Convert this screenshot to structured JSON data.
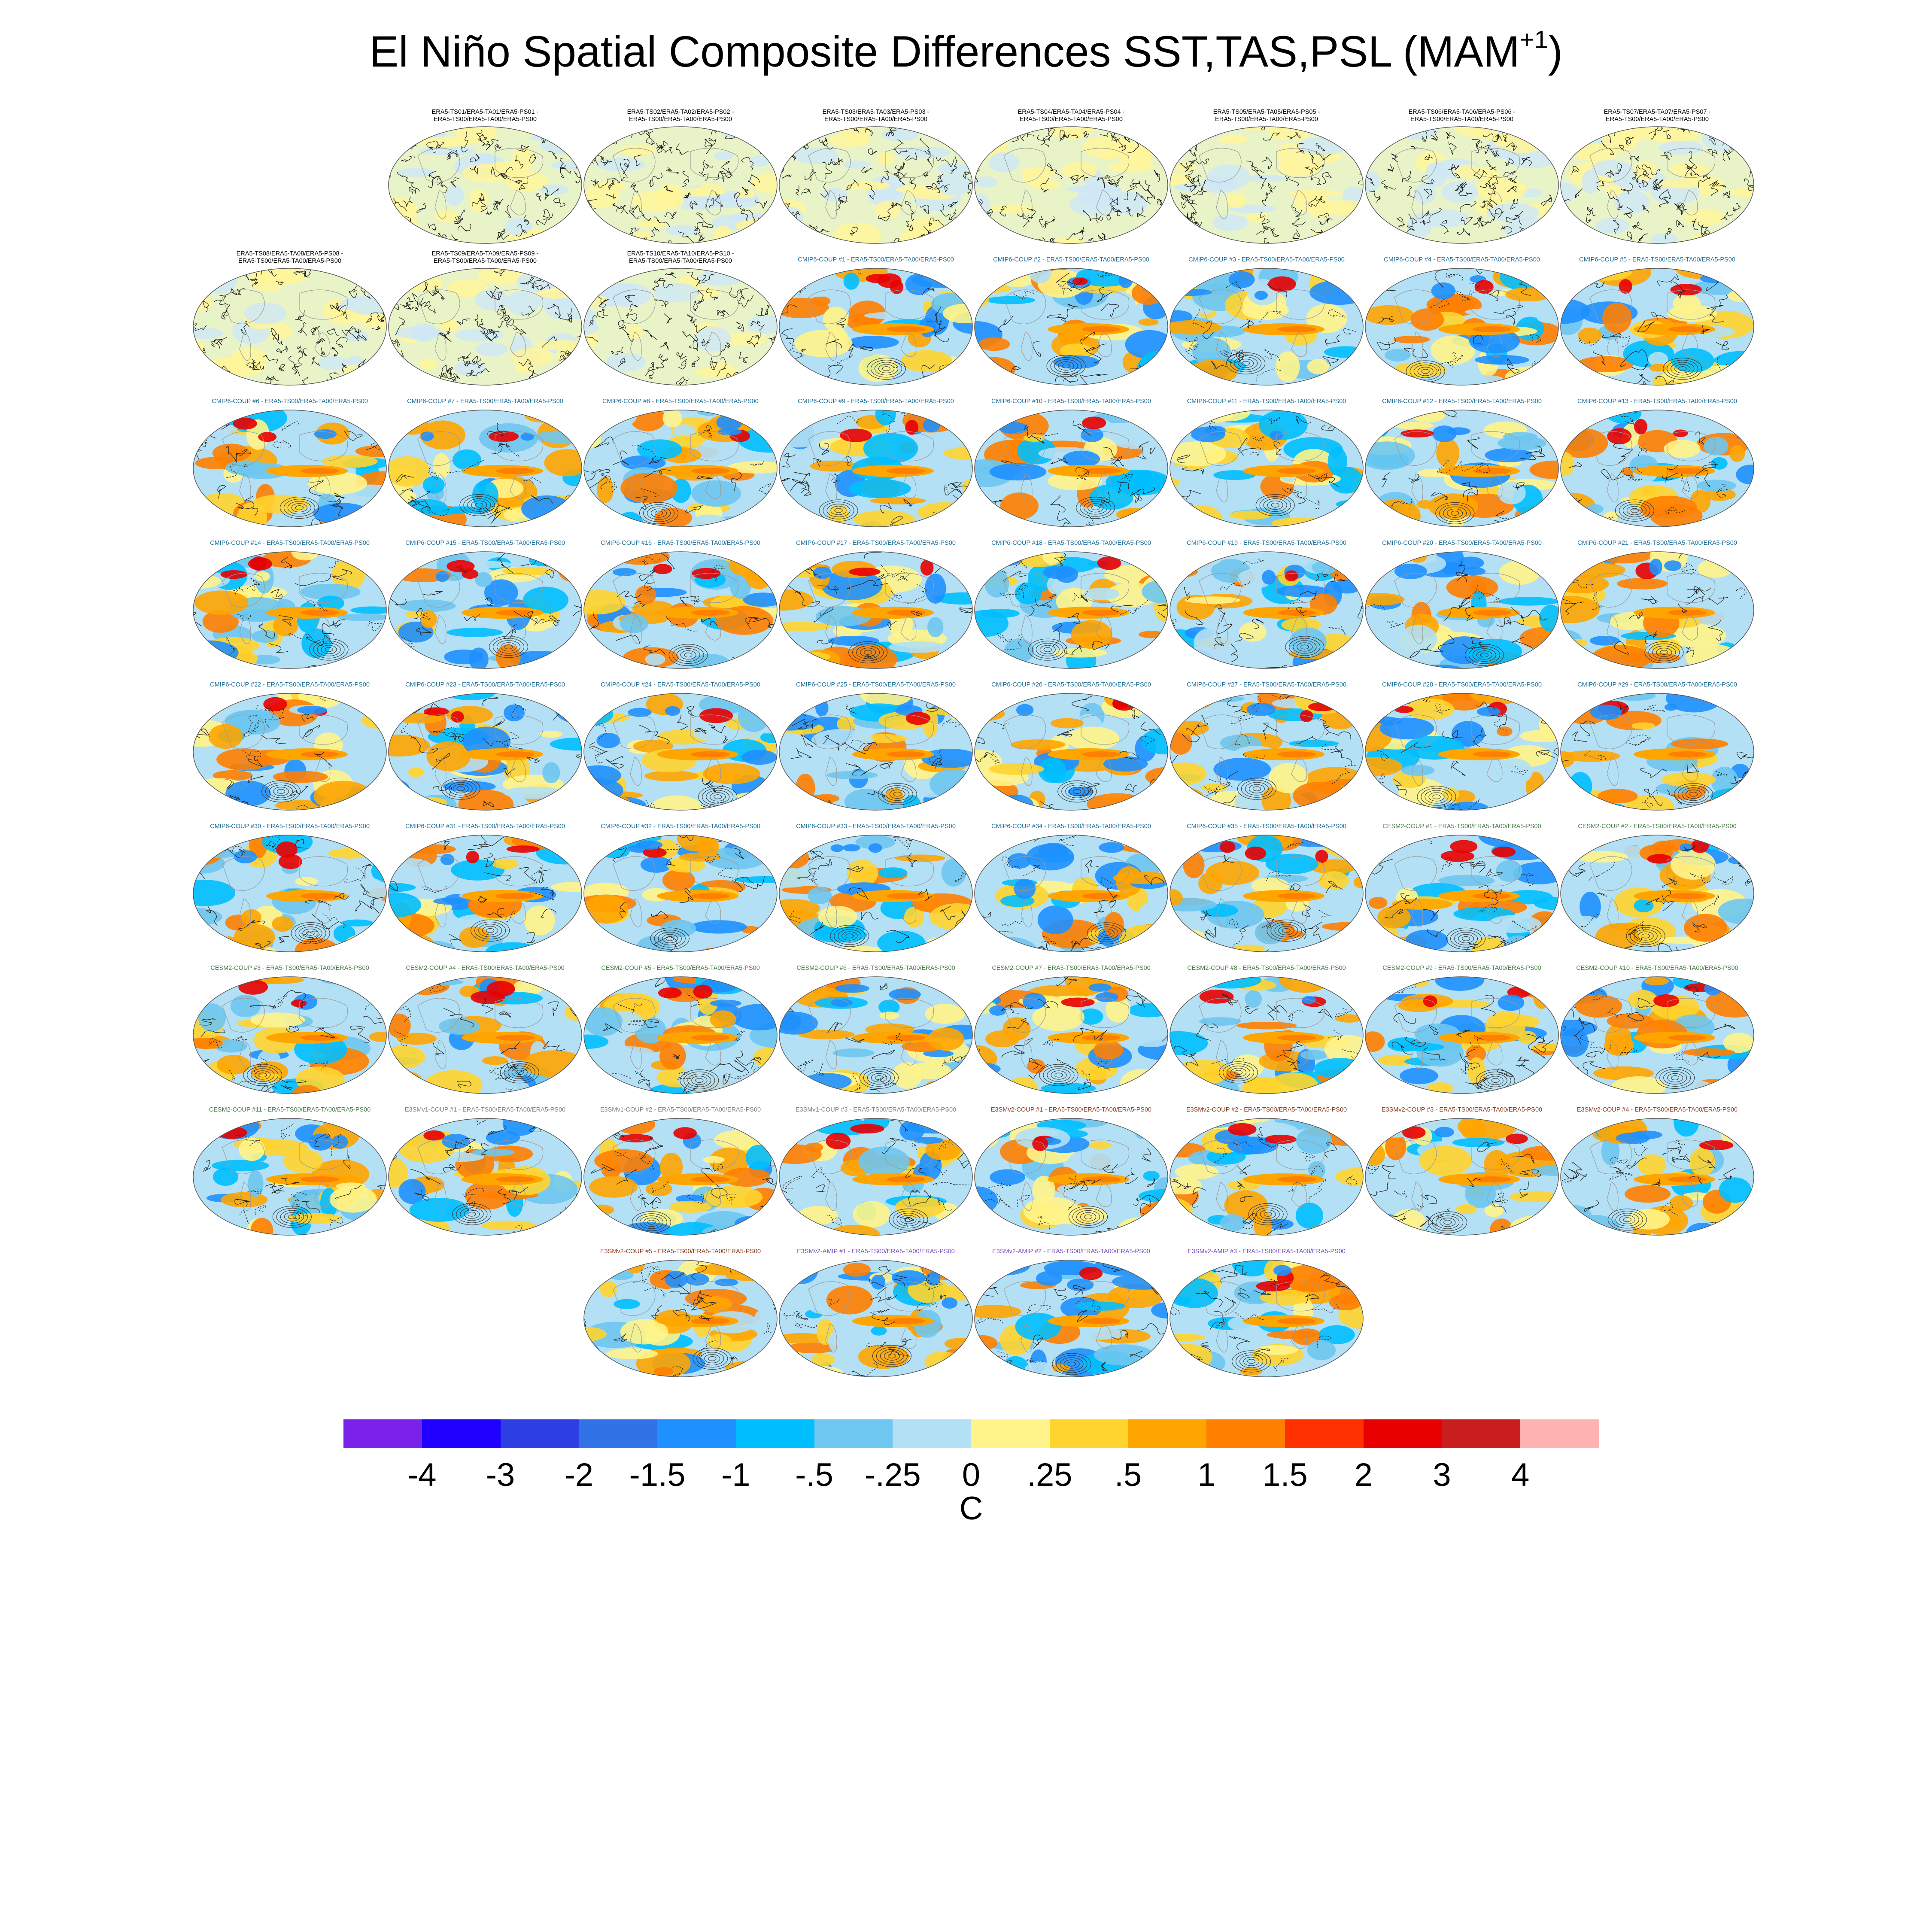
{
  "title": {
    "main": "El Niño Spatial Composite Differences SST,TAS,PSL (MAM",
    "superscript": "+1",
    "close": ")"
  },
  "panels": {
    "era5": [
      {
        "label1": "ERA5-TS01/ERA5-TA01/ERA5-PS01 -",
        "label2": "ERA5-TS00/ERA5-TA00/ERA5-PS00"
      },
      {
        "label1": "ERA5-TS02/ERA5-TA02/ERA5-PS02 -",
        "label2": "ERA5-TS00/ERA5-TA00/ERA5-PS00"
      },
      {
        "label1": "ERA5-TS03/ERA5-TA03/ERA5-PS03 -",
        "label2": "ERA5-TS00/ERA5-TA00/ERA5-PS00"
      },
      {
        "label1": "ERA5-TS04/ERA5-TA04/ERA5-PS04 -",
        "label2": "ERA5-TS00/ERA5-TA00/ERA5-PS00"
      },
      {
        "label1": "ERA5-TS05/ERA5-TA05/ERA5-PS05 -",
        "label2": "ERA5-TS00/ERA5-TA00/ERA5-PS00"
      },
      {
        "label1": "ERA5-TS06/ERA5-TA06/ERA5-PS06 -",
        "label2": "ERA5-TS00/ERA5-TA00/ERA5-PS00"
      },
      {
        "label1": "ERA5-TS07/ERA5-TA07/ERA5-PS07 -",
        "label2": "ERA5-TS00/ERA5-TA00/ERA5-PS00"
      },
      {
        "label1": "ERA5-TS08/ERA5-TA08/ERA5-PS08 -",
        "label2": "ERA5-TS00/ERA5-TA00/ERA5-PS00"
      },
      {
        "label1": "ERA5-TS09/ERA5-TA09/ERA5-PS09 -",
        "label2": "ERA5-TS00/ERA5-TA00/ERA5-PS00"
      },
      {
        "label1": "ERA5-TS10/ERA5-TA10/ERA5-PS10 -",
        "label2": "ERA5-TS00/ERA5-TA00/ERA5-PS00"
      }
    ],
    "models": [
      {
        "label": "CMIP6-COUP  #1 - ERA5-TS00/ERA5-TA00/ERA5-PS00",
        "color": "#1f6f99"
      },
      {
        "label": "CMIP6-COUP  #2 - ERA5-TS00/ERA5-TA00/ERA5-PS00",
        "color": "#1f6f99"
      },
      {
        "label": "CMIP6-COUP  #3 - ERA5-TS00/ERA5-TA00/ERA5-PS00",
        "color": "#1f6f99"
      },
      {
        "label": "CMIP6-COUP  #4 - ERA5-TS00/ERA5-TA00/ERA5-PS00",
        "color": "#1f6f99"
      },
      {
        "label": "CMIP6-COUP  #5 - ERA5-TS00/ERA5-TA00/ERA5-PS00",
        "color": "#1f6f99"
      },
      {
        "label": "CMIP6-COUP  #6 - ERA5-TS00/ERA5-TA00/ERA5-PS00",
        "color": "#1f6f99"
      },
      {
        "label": "CMIP6-COUP  #7 - ERA5-TS00/ERA5-TA00/ERA5-PS00",
        "color": "#1f6f99"
      },
      {
        "label": "CMIP6-COUP  #8 - ERA5-TS00/ERA5-TA00/ERA5-PS00",
        "color": "#1f6f99"
      },
      {
        "label": "CMIP6-COUP  #9 - ERA5-TS00/ERA5-TA00/ERA5-PS00",
        "color": "#1f6f99"
      },
      {
        "label": "CMIP6-COUP  #10 - ERA5-TS00/ERA5-TA00/ERA5-PS00",
        "color": "#1f6f99"
      },
      {
        "label": "CMIP6-COUP  #11 - ERA5-TS00/ERA5-TA00/ERA5-PS00",
        "color": "#1f6f99"
      },
      {
        "label": "CMIP6-COUP  #12 - ERA5-TS00/ERA5-TA00/ERA5-PS00",
        "color": "#1f6f99"
      },
      {
        "label": "CMIP6-COUP  #13 - ERA5-TS00/ERA5-TA00/ERA5-PS00",
        "color": "#1f6f99"
      },
      {
        "label": "CMIP6-COUP  #14 - ERA5-TS00/ERA5-TA00/ERA5-PS00",
        "color": "#1f6f99"
      },
      {
        "label": "CMIP6-COUP  #15 - ERA5-TS00/ERA5-TA00/ERA5-PS00",
        "color": "#1f6f99"
      },
      {
        "label": "CMIP6-COUP  #16 - ERA5-TS00/ERA5-TA00/ERA5-PS00",
        "color": "#1f6f99"
      },
      {
        "label": "CMIP6-COUP  #17 - ERA5-TS00/ERA5-TA00/ERA5-PS00",
        "color": "#1f6f99"
      },
      {
        "label": "CMIP6-COUP  #18 - ERA5-TS00/ERA5-TA00/ERA5-PS00",
        "color": "#1f6f99"
      },
      {
        "label": "CMIP6-COUP  #19 - ERA5-TS00/ERA5-TA00/ERA5-PS00",
        "color": "#1f6f99"
      },
      {
        "label": "CMIP6-COUP  #20 - ERA5-TS00/ERA5-TA00/ERA5-PS00",
        "color": "#1f6f99"
      },
      {
        "label": "CMIP6-COUP  #21 - ERA5-TS00/ERA5-TA00/ERA5-PS00",
        "color": "#1f6f99"
      },
      {
        "label": "CMIP6-COUP  #22 - ERA5-TS00/ERA5-TA00/ERA5-PS00",
        "color": "#1f6f99"
      },
      {
        "label": "CMIP6-COUP  #23 - ERA5-TS00/ERA5-TA00/ERA5-PS00",
        "color": "#1f6f99"
      },
      {
        "label": "CMIP6-COUP  #24 - ERA5-TS00/ERA5-TA00/ERA5-PS00",
        "color": "#1f6f99"
      },
      {
        "label": "CMIP6-COUP  #25 - ERA5-TS00/ERA5-TA00/ERA5-PS00",
        "color": "#1f6f99"
      },
      {
        "label": "CMIP6-COUP  #26 - ERA5-TS00/ERA5-TA00/ERA5-PS00",
        "color": "#1f6f99"
      },
      {
        "label": "CMIP6-COUP  #27 - ERA5-TS00/ERA5-TA00/ERA5-PS00",
        "color": "#1f6f99"
      },
      {
        "label": "CMIP6-COUP  #28 - ERA5-TS00/ERA5-TA00/ERA5-PS00",
        "color": "#1f6f99"
      },
      {
        "label": "CMIP6-COUP  #29 - ERA5-TS00/ERA5-TA00/ERA5-PS00",
        "color": "#1f6f99"
      },
      {
        "label": "CMIP6-COUP  #30 - ERA5-TS00/ERA5-TA00/ERA5-PS00",
        "color": "#1f6f99"
      },
      {
        "label": "CMIP6-COUP  #31 - ERA5-TS00/ERA5-TA00/ERA5-PS00",
        "color": "#1f6f99"
      },
      {
        "label": "CMIP6-COUP  #32 - ERA5-TS00/ERA5-TA00/ERA5-PS00",
        "color": "#1f6f99"
      },
      {
        "label": "CMIP6-COUP  #33 - ERA5-TS00/ERA5-TA00/ERA5-PS00",
        "color": "#1f6f99"
      },
      {
        "label": "CMIP6-COUP  #34 - ERA5-TS00/ERA5-TA00/ERA5-PS00",
        "color": "#1f6f99"
      },
      {
        "label": "CMIP6-COUP  #35 - ERA5-TS00/ERA5-TA00/ERA5-PS00",
        "color": "#1f6f99"
      },
      {
        "label": "CESM2-COUP  #1 - ERA5-TS00/ERA5-TA00/ERA5-PS00",
        "color": "#4a7c4a"
      },
      {
        "label": "CESM2-COUP  #2 - ERA5-TS00/ERA5-TA00/ERA5-PS00",
        "color": "#4a7c4a"
      },
      {
        "label": "CESM2-COUP  #3 - ERA5-TS00/ERA5-TA00/ERA5-PS00",
        "color": "#4a7c4a"
      },
      {
        "label": "CESM2-COUP  #4 - ERA5-TS00/ERA5-TA00/ERA5-PS00",
        "color": "#4a7c4a"
      },
      {
        "label": "CESM2-COUP  #5 - ERA5-TS00/ERA5-TA00/ERA5-PS00",
        "color": "#4a7c4a"
      },
      {
        "label": "CESM2-COUP  #6 - ERA5-TS00/ERA5-TA00/ERA5-PS00",
        "color": "#4a7c4a"
      },
      {
        "label": "CESM2-COUP  #7 - ERA5-TS00/ERA5-TA00/ERA5-PS00",
        "color": "#4a7c4a"
      },
      {
        "label": "CESM2-COUP  #8 - ERA5-TS00/ERA5-TA00/ERA5-PS00",
        "color": "#4a7c4a"
      },
      {
        "label": "CESM2-COUP  #9 - ERA5-TS00/ERA5-TA00/ERA5-PS00",
        "color": "#4a7c4a"
      },
      {
        "label": "CESM2-COUP  #10 - ERA5-TS00/ERA5-TA00/ERA5-PS00",
        "color": "#4a7c4a"
      },
      {
        "label": "CESM2-COUP  #11 - ERA5-TS00/ERA5-TA00/ERA5-PS00",
        "color": "#4a7c4a"
      },
      {
        "label": "E3SMv1-COUP #1 - ERA5-TS00/ERA5-TA00/ERA5-PS00",
        "color": "#808080"
      },
      {
        "label": "E3SMv1-COUP #2 - ERA5-TS00/ERA5-TA00/ERA5-PS00",
        "color": "#808080"
      },
      {
        "label": "E3SMv1-COUP #3 - ERA5-TS00/ERA5-TA00/ERA5-PS00",
        "color": "#808080"
      },
      {
        "label": "E3SMv2-COUP #1 - ERA5-TS00/ERA5-TA00/ERA5-PS00",
        "color": "#8b3a1a"
      },
      {
        "label": "E3SMv2-COUP #2 - ERA5-TS00/ERA5-TA00/ERA5-PS00",
        "color": "#8b3a1a"
      },
      {
        "label": "E3SMv2-COUP #3 - ERA5-TS00/ERA5-TA00/ERA5-PS00",
        "color": "#8b3a1a"
      },
      {
        "label": "E3SMv2-COUP #4 - ERA5-TS00/ERA5-TA00/ERA5-PS00",
        "color": "#8b3a1a"
      },
      {
        "label": "E3SMv2-COUP #5 - ERA5-TS00/ERA5-TA00/ERA5-PS00",
        "color": "#8b3a1a"
      },
      {
        "label": "E3SMv2-AMIP #1 - ERA5-TS00/ERA5-TA00/ERA5-PS00",
        "color": "#7a4fbf"
      },
      {
        "label": "E3SMv2-AMIP #2 - ERA5-TS00/ERA5-TA00/ERA5-PS00",
        "color": "#7a4fbf"
      },
      {
        "label": "E3SMv2-AMIP #3 - ERA5-TS00/ERA5-TA00/ERA5-PS00",
        "color": "#7a4fbf"
      }
    ]
  },
  "colorbar": {
    "colors": [
      "#7b22ea",
      "#1f00ff",
      "#2d3fe3",
      "#3173e6",
      "#1e90ff",
      "#00bfff",
      "#6ec7f0",
      "#b3e0f5",
      "#fff48a",
      "#ffd42e",
      "#ffa500",
      "#ff7f00",
      "#ff3000",
      "#e80000",
      "#c81e1e",
      "#ffb2b2"
    ],
    "ticks": [
      "-4",
      "-3",
      "-2",
      "-1.5",
      "-1",
      "-.5",
      "-.25",
      "0",
      ".25",
      ".5",
      "1",
      "1.5",
      "2",
      "3",
      "4"
    ],
    "units": "C"
  }
}
